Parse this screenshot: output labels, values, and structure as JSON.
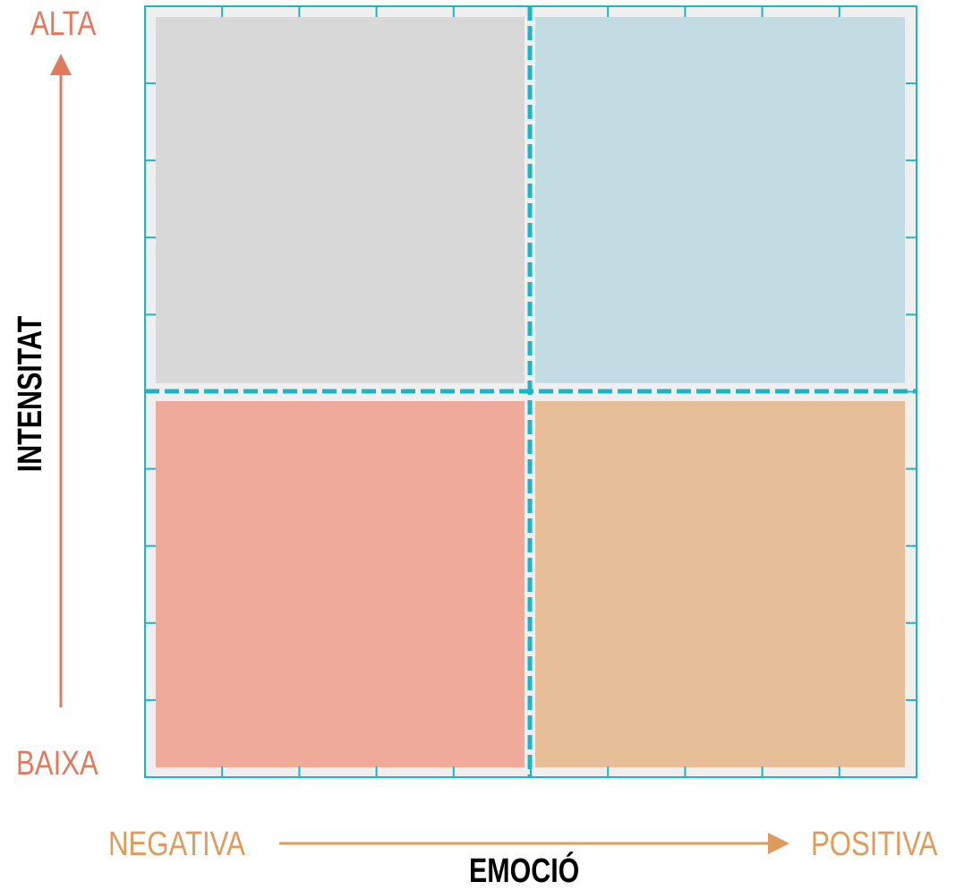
{
  "axes": {
    "y": {
      "title": "INTENSITAT",
      "high_label": "ALTA",
      "low_label": "BAIXA",
      "color": "#e07a5f",
      "title_color": "#000000"
    },
    "x": {
      "title": "EMOCIÓ",
      "low_label": "NEGATIVA",
      "high_label": "POSITIVA",
      "color": "#de9b5b",
      "title_color": "#000000"
    }
  },
  "grid": {
    "frame_color": "#1cb5c4",
    "background_color": "#efefef",
    "divider_style": "dashed",
    "ticks_per_side": 5
  },
  "quadrants": [
    {
      "position": "top-left",
      "meaning": "negative emotion, high intensity",
      "color": "#d8d8d8"
    },
    {
      "position": "top-right",
      "meaning": "positive emotion, high intensity",
      "color": "#c3dce3"
    },
    {
      "position": "bottom-left",
      "meaning": "negative emotion, low intensity",
      "color": "#efaa9a"
    },
    {
      "position": "bottom-right",
      "meaning": "positive emotion, low intensity",
      "color": "#e7be97"
    }
  ]
}
